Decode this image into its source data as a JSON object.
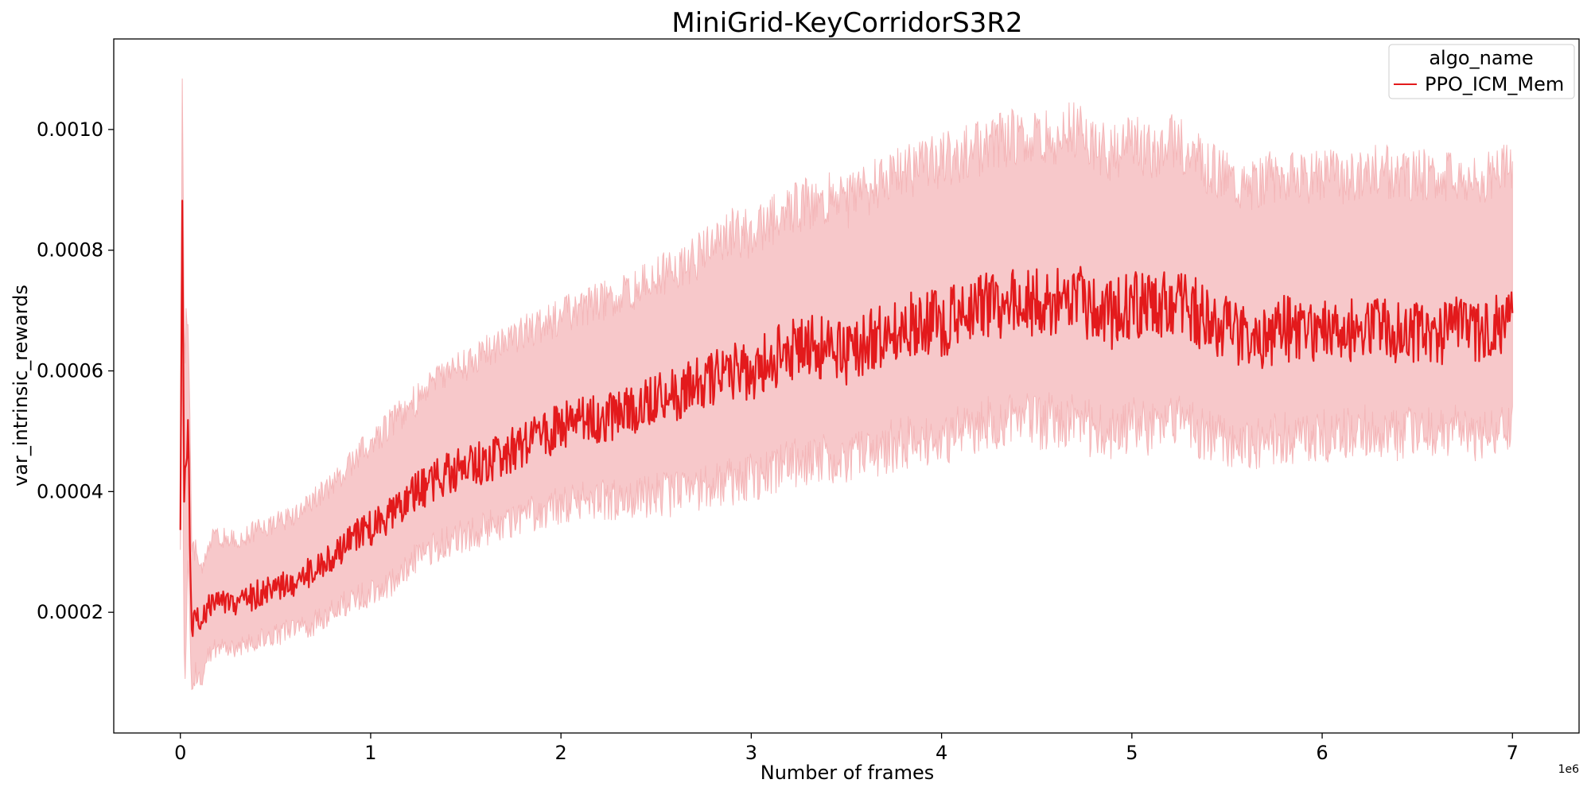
{
  "chart_data": {
    "type": "line",
    "title": "MiniGrid-KeyCorridorS3R2",
    "xlabel": "Number of frames",
    "ylabel": "var_intrinsic_rewards",
    "x_offset_label": "1e6",
    "xlim": [
      -350000,
      7350000
    ],
    "ylim": [
      0.0,
      0.00115
    ],
    "xticks": [
      0,
      1000000,
      2000000,
      3000000,
      4000000,
      5000000,
      6000000,
      7000000
    ],
    "xtick_labels": [
      "0",
      "1",
      "2",
      "3",
      "4",
      "5",
      "6",
      "7"
    ],
    "yticks": [
      0.0002,
      0.0004,
      0.0006,
      0.0008,
      0.001
    ],
    "ytick_labels": [
      "0.0002",
      "0.0004",
      "0.0006",
      "0.0008",
      "0.0010"
    ],
    "grid": false,
    "legend": {
      "title": "algo_name",
      "placement": "top-right"
    },
    "colors": {
      "line": "#e31a1c",
      "band": "#f4b6b8"
    },
    "series": [
      {
        "name": "PPO_ICM_Mem",
        "x": [
          0,
          10000,
          20000,
          40000,
          60000,
          80000,
          100000,
          150000,
          200000,
          300000,
          400000,
          500000,
          600000,
          700000,
          800000,
          900000,
          1000000,
          1100000,
          1200000,
          1300000,
          1400000,
          1500000,
          1600000,
          1700000,
          1800000,
          1900000,
          2000000,
          2100000,
          2200000,
          2300000,
          2400000,
          2500000,
          2600000,
          2700000,
          2800000,
          2900000,
          3000000,
          3100000,
          3200000,
          3300000,
          3400000,
          3500000,
          3600000,
          3700000,
          3800000,
          3900000,
          4000000,
          4100000,
          4200000,
          4300000,
          4400000,
          4500000,
          4600000,
          4700000,
          4800000,
          4900000,
          5000000,
          5100000,
          5200000,
          5300000,
          5400000,
          5500000,
          5600000,
          5700000,
          5800000,
          5900000,
          6000000,
          6100000,
          6200000,
          6300000,
          6400000,
          6500000,
          6600000,
          6700000,
          6800000,
          6900000,
          7000000
        ],
        "mean": [
          0.00033,
          0.00087,
          0.00035,
          0.0005,
          0.00018,
          0.0002,
          0.00017,
          0.00021,
          0.00022,
          0.00021,
          0.00023,
          0.00024,
          0.00025,
          0.00027,
          0.00029,
          0.00032,
          0.00034,
          0.00036,
          0.00039,
          0.00041,
          0.00043,
          0.00044,
          0.00045,
          0.00046,
          0.00048,
          0.00049,
          0.00051,
          0.00052,
          0.00052,
          0.00053,
          0.00054,
          0.00055,
          0.00056,
          0.00057,
          0.00059,
          0.0006,
          0.0006,
          0.00062,
          0.00063,
          0.00064,
          0.00064,
          0.00063,
          0.00065,
          0.00066,
          0.00067,
          0.00068,
          0.00068,
          0.00069,
          0.0007,
          0.00071,
          0.00072,
          0.00071,
          0.00072,
          0.00073,
          0.0007,
          0.00069,
          0.00071,
          0.0007,
          0.00072,
          0.00071,
          0.00068,
          0.00067,
          0.00065,
          0.00066,
          0.00067,
          0.00066,
          0.00067,
          0.00066,
          0.00067,
          0.00068,
          0.00066,
          0.00067,
          0.00066,
          0.00067,
          0.00066,
          0.00067,
          0.00068
        ],
        "lower": [
          0.0003,
          0.00065,
          0.0001,
          0.0003,
          9e-05,
          0.00011,
          9e-05,
          0.00014,
          0.00015,
          0.00015,
          0.00016,
          0.00017,
          0.00018,
          0.00019,
          0.00021,
          0.00023,
          0.00024,
          0.00026,
          0.00029,
          0.00031,
          0.00033,
          0.00034,
          0.00035,
          0.00036,
          0.00037,
          0.00038,
          0.00039,
          0.0004,
          0.0004,
          0.0004,
          0.0004,
          0.00041,
          0.00041,
          0.00042,
          0.00043,
          0.00043,
          0.00044,
          0.00045,
          0.00046,
          0.00047,
          0.00047,
          0.00047,
          0.00048,
          0.00049,
          0.0005,
          0.0005,
          0.00051,
          0.00052,
          0.00053,
          0.00053,
          0.00054,
          0.00053,
          0.00054,
          0.00054,
          0.00052,
          0.00052,
          0.00053,
          0.00052,
          0.00054,
          0.00053,
          0.00051,
          0.0005,
          0.00049,
          0.0005,
          0.00051,
          0.0005,
          0.00051,
          0.00051,
          0.00052,
          0.00052,
          0.00051,
          0.00052,
          0.00051,
          0.00052,
          0.00051,
          0.00052,
          0.00053
        ],
        "upper": [
          0.00036,
          0.00111,
          0.0006,
          0.0007,
          0.00028,
          0.0003,
          0.00026,
          0.00031,
          0.00032,
          0.00031,
          0.00033,
          0.00034,
          0.00035,
          0.00038,
          0.0004,
          0.00044,
          0.00047,
          0.0005,
          0.00053,
          0.00056,
          0.00058,
          0.0006,
          0.00062,
          0.00063,
          0.00065,
          0.00066,
          0.00068,
          0.00069,
          0.0007,
          0.00071,
          0.00072,
          0.00074,
          0.00075,
          0.00077,
          0.00079,
          0.00081,
          0.00081,
          0.00083,
          0.00085,
          0.00086,
          0.00087,
          0.00086,
          0.00088,
          0.0009,
          0.00091,
          0.00092,
          0.00093,
          0.00094,
          0.00095,
          0.00096,
          0.00097,
          0.00096,
          0.00097,
          0.00098,
          0.00095,
          0.00094,
          0.00096,
          0.00094,
          0.00096,
          0.00095,
          0.00092,
          0.00091,
          0.00089,
          0.0009,
          0.00091,
          0.0009,
          0.00091,
          0.0009,
          0.00091,
          0.00092,
          0.0009,
          0.00091,
          0.0009,
          0.00091,
          0.0009,
          0.00091,
          0.00092
        ]
      }
    ]
  }
}
